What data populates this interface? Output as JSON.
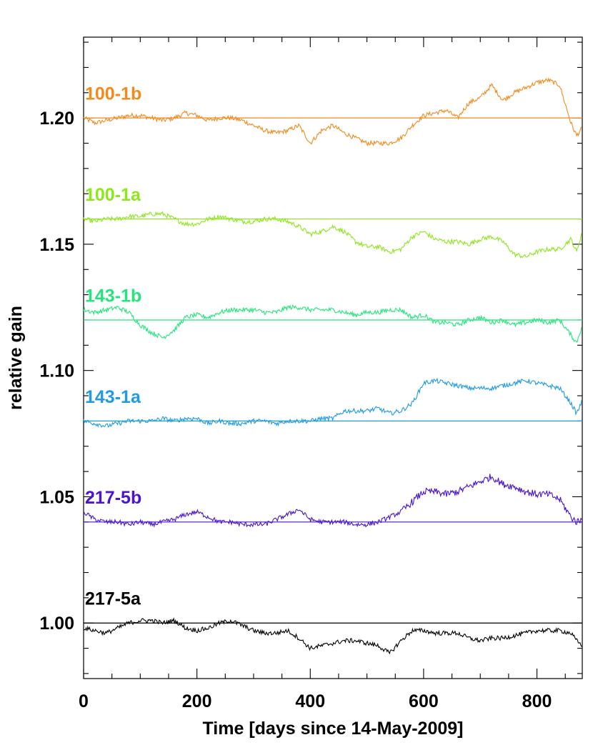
{
  "chart_data": {
    "type": "line",
    "title": "",
    "xlabel": "Time [days since 14-May-2009]",
    "ylabel": "relative gain",
    "xlim": [
      0,
      880
    ],
    "ylim": [
      0.978,
      1.232
    ],
    "x_ticks": [
      0,
      200,
      400,
      600,
      800
    ],
    "y_ticks": [
      1.0,
      1.05,
      1.1,
      1.15,
      1.2
    ],
    "x_tick_labels": [
      "0",
      "200",
      "400",
      "600",
      "800"
    ],
    "y_tick_labels": [
      "1.00",
      "1.05",
      "1.10",
      "1.15",
      "1.20"
    ],
    "grid": false,
    "legend": "labels next to series",
    "series": [
      {
        "name": "100-1b",
        "color": "#f28a1e",
        "reference": 1.2,
        "points": [
          [
            0,
            1.2
          ],
          [
            20,
            1.198
          ],
          [
            40,
            1.199
          ],
          [
            60,
            1.2
          ],
          [
            80,
            1.201
          ],
          [
            100,
            1.201
          ],
          [
            120,
            1.2
          ],
          [
            140,
            1.199
          ],
          [
            160,
            1.2
          ],
          [
            180,
            1.202
          ],
          [
            200,
            1.201
          ],
          [
            220,
            1.199
          ],
          [
            240,
            1.2
          ],
          [
            260,
            1.2
          ],
          [
            280,
            1.199
          ],
          [
            300,
            1.197
          ],
          [
            320,
            1.195
          ],
          [
            340,
            1.194
          ],
          [
            360,
            1.195
          ],
          [
            380,
            1.197
          ],
          [
            400,
            1.19
          ],
          [
            420,
            1.195
          ],
          [
            440,
            1.197
          ],
          [
            460,
            1.194
          ],
          [
            480,
            1.192
          ],
          [
            500,
            1.19
          ],
          [
            520,
            1.19
          ],
          [
            540,
            1.19
          ],
          [
            560,
            1.192
          ],
          [
            580,
            1.197
          ],
          [
            600,
            1.201
          ],
          [
            620,
            1.202
          ],
          [
            640,
            1.203
          ],
          [
            660,
            1.2
          ],
          [
            680,
            1.206
          ],
          [
            700,
            1.208
          ],
          [
            720,
            1.213
          ],
          [
            740,
            1.207
          ],
          [
            760,
            1.21
          ],
          [
            780,
            1.212
          ],
          [
            800,
            1.214
          ],
          [
            820,
            1.215
          ],
          [
            840,
            1.213
          ],
          [
            860,
            1.198
          ],
          [
            870,
            1.193
          ],
          [
            880,
            1.196
          ]
        ]
      },
      {
        "name": "100-1a",
        "color": "#8ee61c",
        "reference": 1.16,
        "points": [
          [
            0,
            1.16
          ],
          [
            20,
            1.159
          ],
          [
            40,
            1.16
          ],
          [
            60,
            1.16
          ],
          [
            80,
            1.161
          ],
          [
            100,
            1.161
          ],
          [
            120,
            1.162
          ],
          [
            140,
            1.162
          ],
          [
            160,
            1.16
          ],
          [
            180,
            1.158
          ],
          [
            200,
            1.158
          ],
          [
            220,
            1.16
          ],
          [
            240,
            1.161
          ],
          [
            260,
            1.16
          ],
          [
            280,
            1.159
          ],
          [
            300,
            1.159
          ],
          [
            320,
            1.16
          ],
          [
            340,
            1.16
          ],
          [
            360,
            1.159
          ],
          [
            380,
            1.157
          ],
          [
            400,
            1.154
          ],
          [
            420,
            1.155
          ],
          [
            440,
            1.157
          ],
          [
            460,
            1.155
          ],
          [
            480,
            1.151
          ],
          [
            500,
            1.149
          ],
          [
            520,
            1.149
          ],
          [
            540,
            1.147
          ],
          [
            560,
            1.148
          ],
          [
            580,
            1.153
          ],
          [
            600,
            1.155
          ],
          [
            620,
            1.152
          ],
          [
            640,
            1.151
          ],
          [
            660,
            1.151
          ],
          [
            680,
            1.15
          ],
          [
            700,
            1.152
          ],
          [
            720,
            1.153
          ],
          [
            740,
            1.151
          ],
          [
            760,
            1.146
          ],
          [
            780,
            1.145
          ],
          [
            800,
            1.147
          ],
          [
            820,
            1.148
          ],
          [
            840,
            1.148
          ],
          [
            860,
            1.152
          ],
          [
            870,
            1.147
          ],
          [
            880,
            1.155
          ]
        ]
      },
      {
        "name": "143-1b",
        "color": "#22e67a",
        "reference": 1.12,
        "points": [
          [
            0,
            1.124
          ],
          [
            20,
            1.123
          ],
          [
            40,
            1.124
          ],
          [
            60,
            1.125
          ],
          [
            80,
            1.123
          ],
          [
            100,
            1.118
          ],
          [
            120,
            1.115
          ],
          [
            140,
            1.113
          ],
          [
            160,
            1.116
          ],
          [
            180,
            1.121
          ],
          [
            200,
            1.122
          ],
          [
            220,
            1.121
          ],
          [
            240,
            1.123
          ],
          [
            260,
            1.124
          ],
          [
            280,
            1.124
          ],
          [
            300,
            1.124
          ],
          [
            320,
            1.123
          ],
          [
            340,
            1.123
          ],
          [
            360,
            1.125
          ],
          [
            380,
            1.125
          ],
          [
            400,
            1.124
          ],
          [
            420,
            1.124
          ],
          [
            440,
            1.124
          ],
          [
            460,
            1.123
          ],
          [
            480,
            1.122
          ],
          [
            500,
            1.123
          ],
          [
            520,
            1.123
          ],
          [
            540,
            1.124
          ],
          [
            560,
            1.124
          ],
          [
            580,
            1.121
          ],
          [
            600,
            1.122
          ],
          [
            620,
            1.119
          ],
          [
            640,
            1.119
          ],
          [
            660,
            1.118
          ],
          [
            680,
            1.12
          ],
          [
            700,
            1.121
          ],
          [
            720,
            1.119
          ],
          [
            740,
            1.12
          ],
          [
            760,
            1.118
          ],
          [
            780,
            1.119
          ],
          [
            800,
            1.12
          ],
          [
            820,
            1.119
          ],
          [
            840,
            1.12
          ],
          [
            860,
            1.114
          ],
          [
            870,
            1.111
          ],
          [
            880,
            1.118
          ]
        ]
      },
      {
        "name": "143-1a",
        "color": "#1e9be6",
        "reference": 1.08,
        "points": [
          [
            0,
            1.08
          ],
          [
            20,
            1.079
          ],
          [
            40,
            1.078
          ],
          [
            60,
            1.079
          ],
          [
            80,
            1.08
          ],
          [
            100,
            1.08
          ],
          [
            120,
            1.08
          ],
          [
            140,
            1.081
          ],
          [
            160,
            1.08
          ],
          [
            180,
            1.081
          ],
          [
            200,
            1.081
          ],
          [
            220,
            1.079
          ],
          [
            240,
            1.08
          ],
          [
            260,
            1.079
          ],
          [
            280,
            1.079
          ],
          [
            300,
            1.08
          ],
          [
            320,
            1.08
          ],
          [
            340,
            1.079
          ],
          [
            360,
            1.08
          ],
          [
            380,
            1.08
          ],
          [
            400,
            1.08
          ],
          [
            420,
            1.081
          ],
          [
            440,
            1.081
          ],
          [
            460,
            1.084
          ],
          [
            480,
            1.084
          ],
          [
            500,
            1.084
          ],
          [
            520,
            1.085
          ],
          [
            540,
            1.083
          ],
          [
            560,
            1.084
          ],
          [
            580,
            1.087
          ],
          [
            600,
            1.095
          ],
          [
            620,
            1.096
          ],
          [
            640,
            1.095
          ],
          [
            660,
            1.094
          ],
          [
            680,
            1.093
          ],
          [
            700,
            1.093
          ],
          [
            720,
            1.093
          ],
          [
            740,
            1.094
          ],
          [
            760,
            1.095
          ],
          [
            780,
            1.096
          ],
          [
            800,
            1.095
          ],
          [
            820,
            1.094
          ],
          [
            840,
            1.093
          ],
          [
            860,
            1.087
          ],
          [
            870,
            1.083
          ],
          [
            880,
            1.088
          ]
        ]
      },
      {
        "name": "217-5b",
        "color": "#4b14d0",
        "reference": 1.04,
        "points": [
          [
            0,
            1.044
          ],
          [
            20,
            1.041
          ],
          [
            40,
            1.04
          ],
          [
            60,
            1.04
          ],
          [
            80,
            1.039
          ],
          [
            100,
            1.04
          ],
          [
            120,
            1.039
          ],
          [
            140,
            1.04
          ],
          [
            160,
            1.041
          ],
          [
            180,
            1.043
          ],
          [
            200,
            1.044
          ],
          [
            220,
            1.042
          ],
          [
            240,
            1.04
          ],
          [
            260,
            1.04
          ],
          [
            280,
            1.039
          ],
          [
            300,
            1.039
          ],
          [
            320,
            1.039
          ],
          [
            340,
            1.041
          ],
          [
            360,
            1.043
          ],
          [
            380,
            1.045
          ],
          [
            400,
            1.041
          ],
          [
            420,
            1.04
          ],
          [
            440,
            1.04
          ],
          [
            460,
            1.04
          ],
          [
            480,
            1.039
          ],
          [
            500,
            1.039
          ],
          [
            520,
            1.04
          ],
          [
            540,
            1.042
          ],
          [
            560,
            1.044
          ],
          [
            580,
            1.048
          ],
          [
            600,
            1.052
          ],
          [
            620,
            1.052
          ],
          [
            640,
            1.051
          ],
          [
            660,
            1.052
          ],
          [
            680,
            1.054
          ],
          [
            700,
            1.056
          ],
          [
            720,
            1.058
          ],
          [
            740,
            1.055
          ],
          [
            760,
            1.054
          ],
          [
            780,
            1.052
          ],
          [
            800,
            1.051
          ],
          [
            820,
            1.051
          ],
          [
            840,
            1.049
          ],
          [
            860,
            1.042
          ],
          [
            870,
            1.04
          ],
          [
            880,
            1.041
          ]
        ]
      },
      {
        "name": "217-5a",
        "color": "#000000",
        "reference": 1.0,
        "points": [
          [
            0,
            0.998
          ],
          [
            20,
            0.997
          ],
          [
            40,
            0.996
          ],
          [
            60,
            0.998
          ],
          [
            80,
            1.0
          ],
          [
            100,
            1.001
          ],
          [
            120,
            1.001
          ],
          [
            140,
            1.0
          ],
          [
            160,
            1.001
          ],
          [
            180,
            0.998
          ],
          [
            200,
            0.997
          ],
          [
            220,
            0.998
          ],
          [
            240,
            1.0
          ],
          [
            260,
            1.001
          ],
          [
            280,
            0.999
          ],
          [
            300,
            0.997
          ],
          [
            320,
            0.996
          ],
          [
            340,
            0.996
          ],
          [
            360,
            0.997
          ],
          [
            380,
            0.994
          ],
          [
            400,
            0.99
          ],
          [
            420,
            0.991
          ],
          [
            440,
            0.992
          ],
          [
            460,
            0.993
          ],
          [
            480,
            0.993
          ],
          [
            500,
            0.992
          ],
          [
            520,
            0.991
          ],
          [
            540,
            0.988
          ],
          [
            560,
            0.993
          ],
          [
            580,
            0.997
          ],
          [
            600,
            0.997
          ],
          [
            620,
            0.996
          ],
          [
            640,
            0.996
          ],
          [
            660,
            0.996
          ],
          [
            680,
            0.994
          ],
          [
            700,
            0.993
          ],
          [
            720,
            0.994
          ],
          [
            740,
            0.994
          ],
          [
            760,
            0.995
          ],
          [
            780,
            0.996
          ],
          [
            800,
            0.997
          ],
          [
            820,
            0.997
          ],
          [
            840,
            0.997
          ],
          [
            860,
            0.996
          ],
          [
            870,
            0.993
          ],
          [
            880,
            0.991
          ]
        ]
      }
    ]
  }
}
